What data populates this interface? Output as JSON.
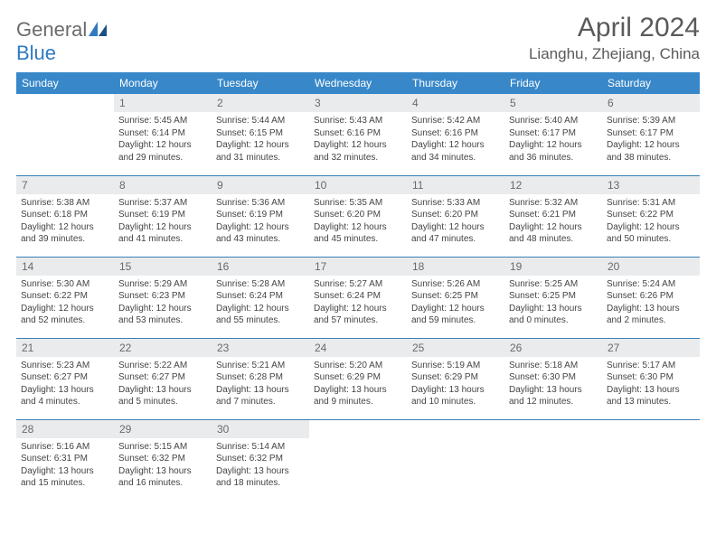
{
  "brand": {
    "part1": "General",
    "part2": "Blue"
  },
  "title": "April 2024",
  "location": "Lianghu, Zhejiang, China",
  "dayHeaders": [
    "Sunday",
    "Monday",
    "Tuesday",
    "Wednesday",
    "Thursday",
    "Friday",
    "Saturday"
  ],
  "colors": {
    "header_bg": "#3888c9",
    "row_divider": "#3a7fb5",
    "daynum_bg": "#e9ebec",
    "title_color": "#5a5a5a"
  },
  "weeks": [
    [
      null,
      {
        "n": "1",
        "sr": "Sunrise: 5:45 AM",
        "ss": "Sunset: 6:14 PM",
        "dl1": "Daylight: 12 hours",
        "dl2": "and 29 minutes."
      },
      {
        "n": "2",
        "sr": "Sunrise: 5:44 AM",
        "ss": "Sunset: 6:15 PM",
        "dl1": "Daylight: 12 hours",
        "dl2": "and 31 minutes."
      },
      {
        "n": "3",
        "sr": "Sunrise: 5:43 AM",
        "ss": "Sunset: 6:16 PM",
        "dl1": "Daylight: 12 hours",
        "dl2": "and 32 minutes."
      },
      {
        "n": "4",
        "sr": "Sunrise: 5:42 AM",
        "ss": "Sunset: 6:16 PM",
        "dl1": "Daylight: 12 hours",
        "dl2": "and 34 minutes."
      },
      {
        "n": "5",
        "sr": "Sunrise: 5:40 AM",
        "ss": "Sunset: 6:17 PM",
        "dl1": "Daylight: 12 hours",
        "dl2": "and 36 minutes."
      },
      {
        "n": "6",
        "sr": "Sunrise: 5:39 AM",
        "ss": "Sunset: 6:17 PM",
        "dl1": "Daylight: 12 hours",
        "dl2": "and 38 minutes."
      }
    ],
    [
      {
        "n": "7",
        "sr": "Sunrise: 5:38 AM",
        "ss": "Sunset: 6:18 PM",
        "dl1": "Daylight: 12 hours",
        "dl2": "and 39 minutes."
      },
      {
        "n": "8",
        "sr": "Sunrise: 5:37 AM",
        "ss": "Sunset: 6:19 PM",
        "dl1": "Daylight: 12 hours",
        "dl2": "and 41 minutes."
      },
      {
        "n": "9",
        "sr": "Sunrise: 5:36 AM",
        "ss": "Sunset: 6:19 PM",
        "dl1": "Daylight: 12 hours",
        "dl2": "and 43 minutes."
      },
      {
        "n": "10",
        "sr": "Sunrise: 5:35 AM",
        "ss": "Sunset: 6:20 PM",
        "dl1": "Daylight: 12 hours",
        "dl2": "and 45 minutes."
      },
      {
        "n": "11",
        "sr": "Sunrise: 5:33 AM",
        "ss": "Sunset: 6:20 PM",
        "dl1": "Daylight: 12 hours",
        "dl2": "and 47 minutes."
      },
      {
        "n": "12",
        "sr": "Sunrise: 5:32 AM",
        "ss": "Sunset: 6:21 PM",
        "dl1": "Daylight: 12 hours",
        "dl2": "and 48 minutes."
      },
      {
        "n": "13",
        "sr": "Sunrise: 5:31 AM",
        "ss": "Sunset: 6:22 PM",
        "dl1": "Daylight: 12 hours",
        "dl2": "and 50 minutes."
      }
    ],
    [
      {
        "n": "14",
        "sr": "Sunrise: 5:30 AM",
        "ss": "Sunset: 6:22 PM",
        "dl1": "Daylight: 12 hours",
        "dl2": "and 52 minutes."
      },
      {
        "n": "15",
        "sr": "Sunrise: 5:29 AM",
        "ss": "Sunset: 6:23 PM",
        "dl1": "Daylight: 12 hours",
        "dl2": "and 53 minutes."
      },
      {
        "n": "16",
        "sr": "Sunrise: 5:28 AM",
        "ss": "Sunset: 6:24 PM",
        "dl1": "Daylight: 12 hours",
        "dl2": "and 55 minutes."
      },
      {
        "n": "17",
        "sr": "Sunrise: 5:27 AM",
        "ss": "Sunset: 6:24 PM",
        "dl1": "Daylight: 12 hours",
        "dl2": "and 57 minutes."
      },
      {
        "n": "18",
        "sr": "Sunrise: 5:26 AM",
        "ss": "Sunset: 6:25 PM",
        "dl1": "Daylight: 12 hours",
        "dl2": "and 59 minutes."
      },
      {
        "n": "19",
        "sr": "Sunrise: 5:25 AM",
        "ss": "Sunset: 6:25 PM",
        "dl1": "Daylight: 13 hours",
        "dl2": "and 0 minutes."
      },
      {
        "n": "20",
        "sr": "Sunrise: 5:24 AM",
        "ss": "Sunset: 6:26 PM",
        "dl1": "Daylight: 13 hours",
        "dl2": "and 2 minutes."
      }
    ],
    [
      {
        "n": "21",
        "sr": "Sunrise: 5:23 AM",
        "ss": "Sunset: 6:27 PM",
        "dl1": "Daylight: 13 hours",
        "dl2": "and 4 minutes."
      },
      {
        "n": "22",
        "sr": "Sunrise: 5:22 AM",
        "ss": "Sunset: 6:27 PM",
        "dl1": "Daylight: 13 hours",
        "dl2": "and 5 minutes."
      },
      {
        "n": "23",
        "sr": "Sunrise: 5:21 AM",
        "ss": "Sunset: 6:28 PM",
        "dl1": "Daylight: 13 hours",
        "dl2": "and 7 minutes."
      },
      {
        "n": "24",
        "sr": "Sunrise: 5:20 AM",
        "ss": "Sunset: 6:29 PM",
        "dl1": "Daylight: 13 hours",
        "dl2": "and 9 minutes."
      },
      {
        "n": "25",
        "sr": "Sunrise: 5:19 AM",
        "ss": "Sunset: 6:29 PM",
        "dl1": "Daylight: 13 hours",
        "dl2": "and 10 minutes."
      },
      {
        "n": "26",
        "sr": "Sunrise: 5:18 AM",
        "ss": "Sunset: 6:30 PM",
        "dl1": "Daylight: 13 hours",
        "dl2": "and 12 minutes."
      },
      {
        "n": "27",
        "sr": "Sunrise: 5:17 AM",
        "ss": "Sunset: 6:30 PM",
        "dl1": "Daylight: 13 hours",
        "dl2": "and 13 minutes."
      }
    ],
    [
      {
        "n": "28",
        "sr": "Sunrise: 5:16 AM",
        "ss": "Sunset: 6:31 PM",
        "dl1": "Daylight: 13 hours",
        "dl2": "and 15 minutes."
      },
      {
        "n": "29",
        "sr": "Sunrise: 5:15 AM",
        "ss": "Sunset: 6:32 PM",
        "dl1": "Daylight: 13 hours",
        "dl2": "and 16 minutes."
      },
      {
        "n": "30",
        "sr": "Sunrise: 5:14 AM",
        "ss": "Sunset: 6:32 PM",
        "dl1": "Daylight: 13 hours",
        "dl2": "and 18 minutes."
      },
      null,
      null,
      null,
      null
    ]
  ]
}
